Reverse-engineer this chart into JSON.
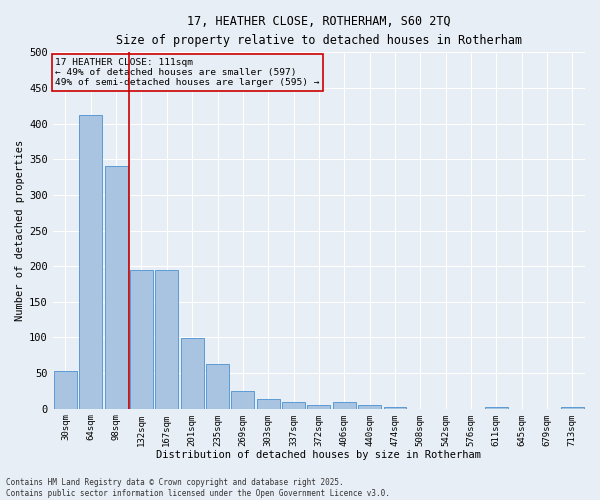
{
  "title_line1": "17, HEATHER CLOSE, ROTHERHAM, S60 2TQ",
  "title_line2": "Size of property relative to detached houses in Rotherham",
  "xlabel": "Distribution of detached houses by size in Rotherham",
  "ylabel": "Number of detached properties",
  "categories": [
    "30sqm",
    "64sqm",
    "98sqm",
    "132sqm",
    "167sqm",
    "201sqm",
    "235sqm",
    "269sqm",
    "303sqm",
    "337sqm",
    "372sqm",
    "406sqm",
    "440sqm",
    "474sqm",
    "508sqm",
    "542sqm",
    "576sqm",
    "611sqm",
    "645sqm",
    "679sqm",
    "713sqm"
  ],
  "values": [
    53,
    412,
    340,
    195,
    195,
    99,
    63,
    25,
    14,
    10,
    5,
    9,
    5,
    2,
    0,
    0,
    0,
    3,
    0,
    0,
    3
  ],
  "bar_color": "#a8c4e0",
  "bar_edge_color": "#5b9bd5",
  "vline_x": 2.5,
  "vline_color": "#cc0000",
  "annotation_title": "17 HEATHER CLOSE: 111sqm",
  "annotation_line1": "← 49% of detached houses are smaller (597)",
  "annotation_line2": "49% of semi-detached houses are larger (595) →",
  "annotation_box_color": "#cc0000",
  "footer_line1": "Contains HM Land Registry data © Crown copyright and database right 2025.",
  "footer_line2": "Contains public sector information licensed under the Open Government Licence v3.0.",
  "ylim": [
    0,
    500
  ],
  "yticks": [
    0,
    50,
    100,
    150,
    200,
    250,
    300,
    350,
    400,
    450,
    500
  ],
  "background_color": "#e8eef5",
  "grid_color": "#ffffff"
}
